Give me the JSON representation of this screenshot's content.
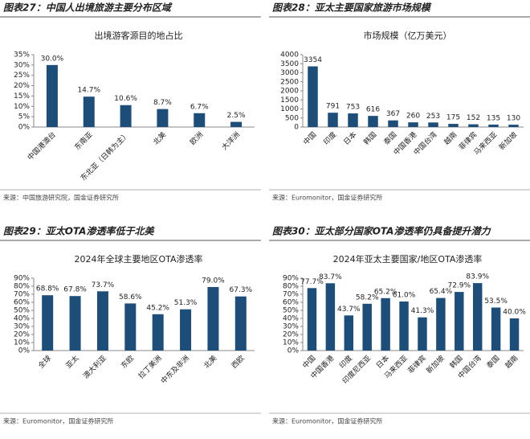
{
  "chart_data": [
    {
      "type": "bar",
      "figure_title": "图表27：中国人出境旅游主要分布区域",
      "title": "出境游客源目的地占比",
      "source": "来源：中国旅游研究院，国金证券研究所",
      "color": "#1d4e79",
      "categories": [
        "中国港澳台",
        "东南亚",
        "东北亚（日韩为主）",
        "北美",
        "欧洲",
        "大洋洲"
      ],
      "values": [
        30.0,
        14.7,
        10.6,
        8.7,
        6.7,
        2.5
      ],
      "value_labels": [
        "30.0%",
        "14.7%",
        "10.6%",
        "8.7%",
        "6.7%",
        "2.5%"
      ],
      "ylim": [
        0,
        35
      ],
      "yticks": [
        {
          "value": 0,
          "label": "0%"
        },
        {
          "value": 5,
          "label": "5%"
        },
        {
          "value": 10,
          "label": "10%"
        },
        {
          "value": 15,
          "label": "15%"
        },
        {
          "value": 20,
          "label": "20%"
        },
        {
          "value": 25,
          "label": "25%"
        },
        {
          "value": 30,
          "label": "30%"
        },
        {
          "value": 35,
          "label": "35%"
        }
      ]
    },
    {
      "type": "bar",
      "figure_title": "图表28：亚太主要国家旅游市场规模",
      "title": "市场规模（亿万美元）",
      "source": "来源：Euromonitor，国金证券研究所",
      "color": "#1d4e79",
      "categories": [
        "中国",
        "印度",
        "日本",
        "韩国",
        "泰国",
        "中国香港",
        "中国台湾",
        "越南",
        "菲律宾",
        "马来西亚",
        "新加坡"
      ],
      "values": [
        3354,
        791,
        753,
        616,
        367,
        260,
        253,
        175,
        152,
        135,
        130
      ],
      "ylim": [
        0,
        4000
      ],
      "yticks": [
        0,
        500,
        1000,
        1500,
        2000,
        2500,
        3000,
        3500,
        4000
      ]
    },
    {
      "type": "bar",
      "figure_title": "图表29：亚太OTA渗透率低于北美",
      "title": "2024年全球主要地区OTA渗透率",
      "source": "来源：Euromonitor，国金证券研究所",
      "color": "#1d4e79",
      "categories": [
        "全球",
        "亚太",
        "澳大利亚",
        "东欧",
        "拉丁美洲",
        "中东及非洲",
        "北美",
        "西欧"
      ],
      "values": [
        68.8,
        67.8,
        73.7,
        58.6,
        45.2,
        51.3,
        79.0,
        67.3
      ],
      "value_labels": [
        "68.8%",
        "67.8%",
        "73.7%",
        "58.6%",
        "45.2%",
        "51.3%",
        "79.0%",
        "67.3%"
      ],
      "ylim": [
        0,
        90
      ],
      "yticks": [
        {
          "value": 0,
          "label": "0%"
        },
        {
          "value": 10,
          "label": "10%"
        },
        {
          "value": 20,
          "label": "20%"
        },
        {
          "value": 30,
          "label": "30%"
        },
        {
          "value": 40,
          "label": "40%"
        },
        {
          "value": 50,
          "label": "50%"
        },
        {
          "value": 60,
          "label": "60%"
        },
        {
          "value": 70,
          "label": "70%"
        },
        {
          "value": 80,
          "label": "80%"
        },
        {
          "value": 90,
          "label": "90%"
        }
      ]
    },
    {
      "type": "bar",
      "figure_title": "图表30：亚太部分国家OTA渗透率仍具备提升潜力",
      "title": "2024年亚太主要国家/地区OTA渗透率",
      "source": "来源：Euromonitor，国金证券研究所",
      "color": "#1d4e79",
      "categories": [
        "中国",
        "中国香港",
        "印度",
        "印度尼西亚",
        "日本",
        "马来西亚",
        "菲律宾",
        "新加坡",
        "韩国",
        "中国台湾",
        "泰国",
        "越南"
      ],
      "values": [
        77.7,
        83.7,
        43.7,
        58.2,
        65.2,
        61.0,
        41.3,
        65.4,
        72.9,
        83.9,
        53.5,
        40.0
      ],
      "value_labels": [
        "77.7%",
        "83.7%",
        "43.7%",
        "58.2%",
        "65.2%",
        "61.0%",
        "41.3%",
        "65.4%",
        "72.9%",
        "83.9%",
        "53.5%",
        "40.0%"
      ],
      "ylim": [
        0,
        90
      ],
      "yticks": [
        {
          "value": 0,
          "label": "0%"
        },
        {
          "value": 10,
          "label": "10%"
        },
        {
          "value": 20,
          "label": "20%"
        },
        {
          "value": 30,
          "label": "30%"
        },
        {
          "value": 40,
          "label": "40%"
        },
        {
          "value": 50,
          "label": "50%"
        },
        {
          "value": 60,
          "label": "60%"
        },
        {
          "value": 70,
          "label": "70%"
        },
        {
          "value": 80,
          "label": "80%"
        },
        {
          "value": 90,
          "label": "90%"
        }
      ]
    }
  ]
}
